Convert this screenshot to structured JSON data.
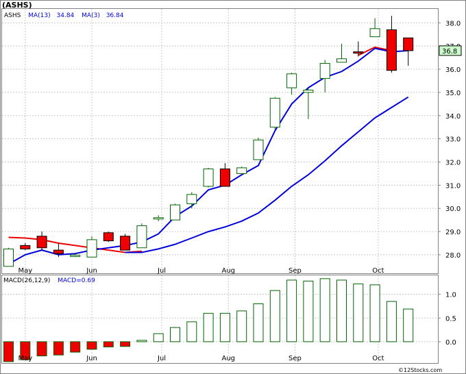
{
  "chart_data": [
    {
      "type": "candlestick",
      "title": "(ASHS)",
      "ticker": "ASHS",
      "legend": [
        {
          "label": "ASHS",
          "color": "#000000"
        },
        {
          "label": "MA(13)",
          "value": "34.84",
          "color": "#0000dd"
        },
        {
          "label": "MA(3)",
          "value": "36.84",
          "color": "#0000dd"
        }
      ],
      "last_price_label": "36.8",
      "ylim": [
        27.2,
        38.6
      ],
      "y_ticks": [
        "28.0",
        "29.0",
        "30.0",
        "31.0",
        "32.0",
        "33.0",
        "34.0",
        "35.0",
        "36.0",
        "37.0",
        "38.0"
      ],
      "x_ticks": [
        {
          "label": "May",
          "week": 1.0
        },
        {
          "label": "Jun",
          "week": 5.0
        },
        {
          "label": "Jul",
          "week": 9.2
        },
        {
          "label": "Aug",
          "week": 13.2
        },
        {
          "label": "Sep",
          "week": 17.2
        },
        {
          "label": "Oct",
          "week": 22.2
        }
      ],
      "ohlc": [
        {
          "week": 0,
          "open": 27.5,
          "high": 28.3,
          "low": 27.5,
          "close": 28.25
        },
        {
          "week": 1,
          "open": 28.4,
          "high": 28.5,
          "low": 28.2,
          "close": 28.25
        },
        {
          "week": 2,
          "open": 28.8,
          "high": 29.0,
          "low": 28.2,
          "close": 28.3
        },
        {
          "week": 3,
          "open": 28.2,
          "high": 28.5,
          "low": 27.9,
          "close": 28.05
        },
        {
          "week": 4,
          "open": 27.95,
          "high": 28.05,
          "low": 27.9,
          "close": 27.98
        },
        {
          "week": 5,
          "open": 27.9,
          "high": 28.8,
          "low": 27.9,
          "close": 28.65
        },
        {
          "week": 6,
          "open": 28.95,
          "high": 29.0,
          "low": 28.55,
          "close": 28.6
        },
        {
          "week": 7,
          "open": 28.8,
          "high": 28.9,
          "low": 28.2,
          "close": 28.2
        },
        {
          "week": 8,
          "open": 28.3,
          "high": 29.35,
          "low": 28.3,
          "close": 29.25
        },
        {
          "week": 9,
          "open": 29.55,
          "high": 29.7,
          "low": 29.45,
          "close": 29.6
        },
        {
          "week": 10,
          "open": 29.5,
          "high": 30.2,
          "low": 29.5,
          "close": 30.15
        },
        {
          "week": 11,
          "open": 30.2,
          "high": 30.7,
          "low": 30.0,
          "close": 30.6
        },
        {
          "week": 12,
          "open": 30.95,
          "high": 31.75,
          "low": 30.9,
          "close": 31.7
        },
        {
          "week": 13,
          "open": 31.7,
          "high": 31.95,
          "low": 30.95,
          "close": 30.95
        },
        {
          "week": 14,
          "open": 31.5,
          "high": 31.8,
          "low": 31.45,
          "close": 31.75
        },
        {
          "week": 15,
          "open": 32.1,
          "high": 33.05,
          "low": 32.1,
          "close": 32.95
        },
        {
          "week": 16,
          "open": 33.5,
          "high": 34.8,
          "low": 33.4,
          "close": 34.75
        },
        {
          "week": 17,
          "open": 35.2,
          "high": 35.85,
          "low": 34.9,
          "close": 35.8
        },
        {
          "week": 18,
          "open": 35.0,
          "high": 35.2,
          "low": 33.85,
          "close": 35.1
        },
        {
          "week": 19,
          "open": 35.6,
          "high": 36.4,
          "low": 35.0,
          "close": 36.25
        },
        {
          "week": 20,
          "open": 36.3,
          "high": 37.1,
          "low": 36.3,
          "close": 36.45
        },
        {
          "week": 21,
          "open": 36.75,
          "high": 37.2,
          "low": 36.55,
          "close": 36.7
        },
        {
          "week": 22,
          "open": 37.4,
          "high": 38.2,
          "low": 37.4,
          "close": 37.75
        },
        {
          "week": 23,
          "open": 37.7,
          "high": 38.3,
          "low": 35.85,
          "close": 35.95
        },
        {
          "week": 24,
          "open": 37.35,
          "high": 37.35,
          "low": 36.15,
          "close": 36.8
        }
      ],
      "ma13": [
        {
          "week": 0,
          "value": 27.6
        },
        {
          "week": 1,
          "value": 28.0
        },
        {
          "week": 2,
          "value": 28.2
        },
        {
          "week": 3,
          "value": 28.0
        },
        {
          "week": 4,
          "value": 28.05
        },
        {
          "week": 5,
          "value": 28.2
        },
        {
          "week": 6,
          "value": 28.3
        },
        {
          "week": 7,
          "value": 28.4
        },
        {
          "week": 8,
          "value": 28.55
        },
        {
          "week": 9,
          "value": 28.9
        },
        {
          "week": 10,
          "value": 29.65
        },
        {
          "week": 11,
          "value": 30.1
        },
        {
          "week": 12,
          "value": 30.8
        },
        {
          "week": 13,
          "value": 31.0
        },
        {
          "week": 14,
          "value": 31.45
        },
        {
          "week": 15,
          "value": 31.85
        },
        {
          "week": 16,
          "value": 33.35
        },
        {
          "week": 17,
          "value": 34.5
        },
        {
          "week": 18,
          "value": 35.2
        },
        {
          "week": 19,
          "value": 35.65
        },
        {
          "week": 20,
          "value": 35.9
        },
        {
          "week": 21,
          "value": 36.35
        },
        {
          "week": 22,
          "value": 36.9
        },
        {
          "week": 23,
          "value": 36.75
        },
        {
          "week": 24,
          "value": 36.8
        }
      ],
      "ma3_red": [
        {
          "week": 0,
          "value": 28.75
        },
        {
          "week": 1,
          "value": 28.72
        },
        {
          "week": 2,
          "value": 28.65
        },
        {
          "week": 3,
          "value": 28.5
        },
        {
          "week": 4,
          "value": 28.4
        },
        {
          "week": 5,
          "value": 28.3
        },
        {
          "week": 6,
          "value": 28.2
        },
        {
          "week": 7,
          "value": 28.1
        },
        {
          "week": 8,
          "value": 28.15
        }
      ],
      "ma3_red_tail": [
        {
          "week": 21,
          "value": 36.6
        },
        {
          "week": 22,
          "value": 36.95
        },
        {
          "week": 23,
          "value": 36.8
        }
      ],
      "ma_long": [
        {
          "week": 0,
          "value": null
        },
        {
          "week": 7,
          "value": 28.1
        },
        {
          "week": 8,
          "value": 28.1
        },
        {
          "week": 9,
          "value": 28.25
        },
        {
          "week": 10,
          "value": 28.45
        },
        {
          "week": 11,
          "value": 28.72
        },
        {
          "week": 12,
          "value": 29.0
        },
        {
          "week": 13,
          "value": 29.2
        },
        {
          "week": 14,
          "value": 29.45
        },
        {
          "week": 15,
          "value": 29.8
        },
        {
          "week": 16,
          "value": 30.35
        },
        {
          "week": 17,
          "value": 30.95
        },
        {
          "week": 18,
          "value": 31.45
        },
        {
          "week": 19,
          "value": 32.05
        },
        {
          "week": 20,
          "value": 32.7
        },
        {
          "week": 21,
          "value": 33.3
        },
        {
          "week": 22,
          "value": 33.9
        },
        {
          "week": 23,
          "value": 34.35
        },
        {
          "week": 24,
          "value": 34.8
        }
      ],
      "colors": {
        "up_fill": "#ffffff",
        "down_fill": "#ee0000",
        "outline": "#006400",
        "ma_blue": "#0000dd",
        "ma_red": "#ee0000",
        "grid": "#c8c8c8",
        "label_box": "#ccffcc"
      }
    },
    {
      "type": "bar",
      "title": "MACD(26,12,9)",
      "legend": [
        {
          "label": "MACD(26,12,9)",
          "color": "#000000"
        },
        {
          "label": "MACD=0.69",
          "color": "#0000dd"
        }
      ],
      "ylim": [
        -0.45,
        1.4
      ],
      "y_ticks": [
        "0.0",
        "0.5",
        "1.0"
      ],
      "x_ticks": [
        "May",
        "Jun",
        "Jul",
        "Aug",
        "Sep",
        "Oct"
      ],
      "values": [
        -0.42,
        -0.38,
        -0.3,
        -0.28,
        -0.22,
        -0.16,
        -0.11,
        -0.1,
        0.03,
        0.17,
        0.3,
        0.42,
        0.6,
        0.6,
        0.65,
        0.8,
        1.08,
        1.3,
        1.28,
        1.33,
        1.3,
        1.22,
        1.2,
        0.85,
        0.69
      ]
    }
  ]
}
